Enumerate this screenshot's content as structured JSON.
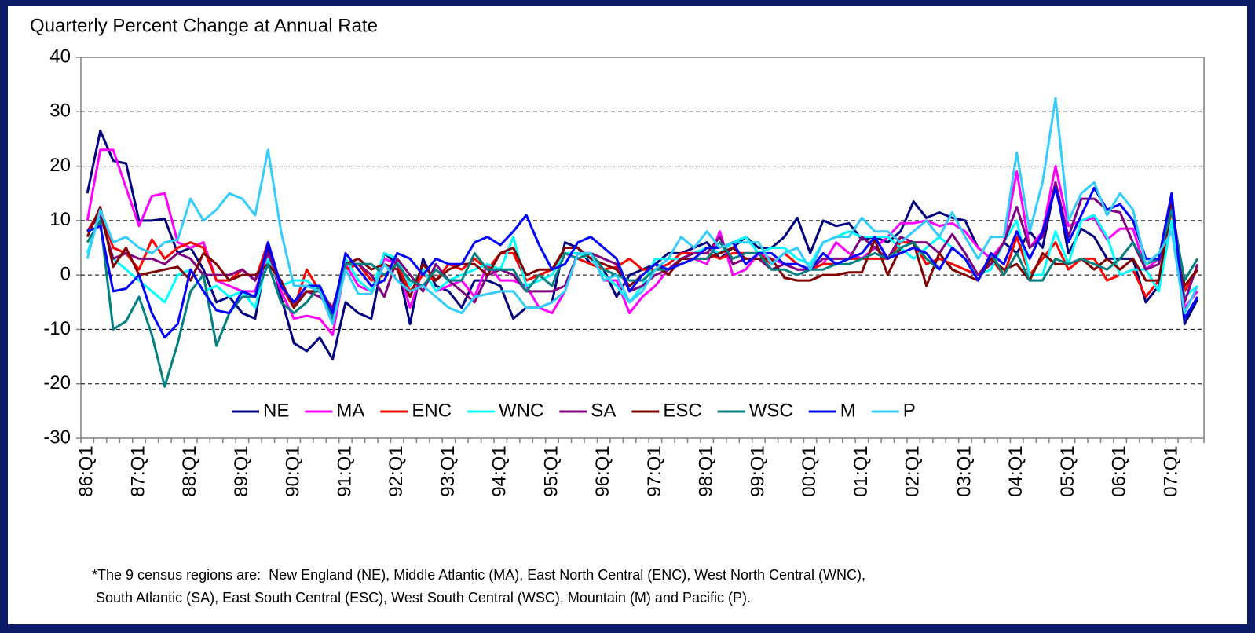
{
  "chart_data": {
    "type": "line",
    "title": "Quarterly Percent Change at Annual Rate",
    "footnote": [
      "*The 9 census regions are:  New England (NE), Middle Atlantic (MA), East North Central (ENC), West North Central (WNC),",
      " South Atlantic (SA), East South Central (ESC), West South Central (WSC), Mountain (M) and Pacific (P)."
    ],
    "categories": [
      "86:Q1",
      null,
      null,
      null,
      "87:Q1",
      null,
      null,
      null,
      "88:Q1",
      null,
      null,
      null,
      "89:Q1",
      null,
      null,
      null,
      "90:Q1",
      null,
      null,
      null,
      "91:Q1",
      null,
      null,
      null,
      "92:Q1",
      null,
      null,
      null,
      "93:Q1",
      null,
      null,
      null,
      "94:Q1",
      null,
      null,
      null,
      "95:Q1",
      null,
      null,
      null,
      "96:Q1",
      null,
      null,
      null,
      "97:Q1",
      null,
      null,
      null,
      "98:Q1",
      null,
      null,
      null,
      "99:Q1",
      null,
      null,
      null,
      "00:Q1",
      null,
      null,
      null,
      "01:Q1",
      null,
      null,
      null,
      "02:Q1",
      null,
      null,
      null,
      "03:Q1",
      null,
      null,
      null,
      "04:Q1",
      null,
      null,
      null,
      "05:Q1",
      null,
      null,
      null,
      "06:Q1",
      null,
      null,
      null,
      "07:Q1",
      null,
      null
    ],
    "ylim": [
      -30,
      40
    ],
    "yticks": [
      -30,
      -20,
      -10,
      0,
      10,
      20,
      30,
      40
    ],
    "grid": true,
    "legend": "bottom",
    "series": [
      {
        "name": "NE",
        "color": "#000080",
        "values": [
          15,
          26.5,
          21,
          20.5,
          10,
          10,
          10.3,
          4,
          5,
          1,
          -5,
          -4,
          -7,
          -8,
          5,
          -4,
          -12.5,
          -14,
          -11.5,
          -15.5,
          -5,
          -7,
          -8,
          4,
          2,
          -9,
          3,
          -2,
          -3,
          -6,
          -1,
          -1,
          -2,
          -8,
          -6,
          -6,
          -5,
          6,
          5,
          2,
          1,
          -4,
          0,
          1,
          2,
          4,
          4,
          5,
          6,
          3,
          5,
          7,
          5,
          5,
          7,
          10.5,
          4,
          10,
          9,
          9.5,
          6.5,
          7,
          6,
          8,
          13.5,
          10.5,
          11.5,
          10.5,
          10,
          5,
          3,
          6,
          4,
          8,
          5,
          17,
          4,
          8.5,
          7,
          3,
          3,
          3,
          -5,
          -2,
          15,
          -9,
          -4.5
        ]
      },
      {
        "name": "MA",
        "color": "#ff00ff",
        "values": [
          10,
          23,
          23,
          16,
          9,
          14.5,
          15,
          6,
          5,
          6,
          -1,
          -2,
          -3,
          -3,
          4,
          -3,
          -8,
          -7.5,
          -8,
          -11,
          2,
          -2,
          -3,
          3,
          2,
          -6,
          1,
          -3,
          -2,
          -1,
          -4,
          2,
          -1,
          -1,
          -2,
          -6,
          -7,
          -3,
          4,
          4,
          -1,
          -1,
          -7,
          -4,
          -2,
          1,
          3,
          3,
          2,
          8,
          0,
          1,
          4,
          3,
          2,
          1,
          1,
          2,
          6,
          4,
          3,
          5,
          7,
          9.5,
          9.5,
          10,
          9,
          9.5,
          8,
          5,
          3,
          6,
          19,
          5,
          8,
          20,
          9,
          10,
          10.5,
          6.5,
          8.5,
          8.5,
          1,
          3,
          13,
          -6,
          -3
        ]
      },
      {
        "name": "ENC",
        "color": "#ff0000",
        "values": [
          8,
          12,
          5,
          4,
          1,
          6.5,
          3,
          5,
          6,
          5,
          -1,
          -1,
          1,
          -1,
          6,
          -2,
          -6,
          1,
          -3,
          -6,
          1,
          2,
          -1,
          0,
          2,
          -3,
          0,
          -1,
          2,
          1,
          3,
          1,
          4,
          4,
          -1,
          0,
          1,
          4,
          3,
          2,
          1,
          1.5,
          3,
          1,
          1,
          2,
          4,
          4,
          4,
          3,
          4,
          4,
          4,
          2,
          4,
          2,
          1,
          2,
          2,
          3,
          3,
          3,
          3,
          6,
          6,
          2,
          3,
          2,
          1,
          0,
          3,
          0,
          7,
          0,
          3,
          6,
          1,
          3,
          3,
          -1,
          0,
          1,
          -4,
          -1,
          12,
          -3,
          1
        ]
      },
      {
        "name": "WNC",
        "color": "#00ffff",
        "values": [
          4,
          11,
          3,
          1,
          -1,
          -3,
          -5,
          0,
          1,
          -3,
          -2,
          -4,
          -3,
          -6,
          3,
          -2,
          -1,
          -1,
          -3,
          -9,
          3,
          -1,
          -3,
          4,
          3,
          -2,
          1,
          -3,
          -1,
          0,
          1,
          2,
          1,
          7,
          -2,
          -1,
          0,
          4,
          4,
          3,
          0,
          -2,
          -5,
          -2,
          3,
          3,
          3,
          4,
          5,
          4,
          6,
          7,
          4,
          5,
          5,
          3,
          2,
          6,
          7,
          8,
          7,
          7,
          7,
          5,
          3,
          5,
          7,
          5,
          3,
          0,
          1,
          6,
          10,
          0,
          0,
          8,
          2,
          10,
          11,
          7,
          0,
          1,
          1,
          -3,
          10,
          -4,
          -2
        ]
      },
      {
        "name": "SA",
        "color": "#800080",
        "values": [
          8,
          11,
          3,
          4,
          3,
          3,
          2,
          4,
          3,
          0,
          0,
          0,
          1,
          -1,
          4,
          -2,
          -5,
          -3,
          -4,
          -6,
          2,
          2,
          0,
          -4,
          3,
          0,
          -3,
          2,
          -1,
          -3,
          -5,
          0,
          1,
          0,
          -3,
          -3,
          -3,
          -2,
          4,
          4,
          3,
          2,
          -3,
          -2,
          0,
          1,
          3,
          4,
          4,
          7,
          2,
          3,
          3,
          1,
          2,
          1,
          1,
          3,
          3,
          3,
          7,
          5,
          3,
          7,
          6,
          6,
          4,
          7.5,
          4,
          0,
          2,
          6,
          12.5,
          5,
          7,
          17,
          7,
          14,
          14,
          12,
          11.5,
          6,
          1,
          2,
          13,
          -5,
          2
        ]
      },
      {
        "name": "ESC",
        "color": "#800000",
        "values": [
          7,
          12.5,
          1.5,
          5,
          0,
          0.5,
          1,
          1.5,
          -1,
          4,
          2,
          -1,
          0,
          0,
          2,
          -1,
          -6,
          -3,
          -3,
          -7,
          2,
          3,
          1,
          2,
          1,
          -4,
          2,
          -1,
          1,
          2,
          2,
          0,
          4,
          5,
          0,
          1,
          1,
          5,
          5,
          3,
          2,
          1,
          -2,
          0,
          2,
          0,
          3,
          3,
          3,
          4,
          5,
          3,
          3,
          3,
          -0.5,
          -1,
          -1,
          0,
          0,
          0.5,
          0.5,
          6.5,
          0,
          5,
          6,
          -2,
          4,
          1,
          0,
          -1,
          3,
          1,
          2,
          -1,
          4,
          2,
          2,
          3,
          1,
          3,
          1,
          3,
          -1,
          -1,
          13,
          -2,
          1
        ]
      },
      {
        "name": "WSC",
        "color": "#008080",
        "values": [
          6,
          10,
          -10,
          -8.5,
          -4,
          -11,
          -20.5,
          -12.5,
          -3,
          0,
          -13,
          -7,
          -4,
          -4,
          2,
          -5,
          -7,
          -5,
          -2,
          -8,
          2,
          2,
          2,
          0,
          2,
          -1,
          -2,
          1,
          -1,
          -1,
          4,
          1,
          1,
          1,
          -3,
          0,
          -2,
          4,
          3,
          4,
          1,
          0,
          -1,
          -1,
          1,
          1,
          2,
          3,
          3,
          6,
          3,
          4,
          4,
          1,
          1,
          0,
          1,
          1,
          2,
          2,
          3,
          4,
          3,
          5,
          6,
          3,
          1,
          5,
          3,
          -1,
          4,
          0,
          4,
          -1,
          -1,
          3,
          2,
          3,
          2,
          1,
          3,
          6,
          2,
          3,
          12,
          -1,
          3
        ]
      },
      {
        "name": "M",
        "color": "#0000ff",
        "values": [
          8,
          9,
          -3,
          -2.5,
          0,
          -7,
          -11.5,
          -9,
          1,
          -3,
          -6.5,
          -7,
          -3,
          -4,
          6,
          -2,
          -5,
          -2,
          -2,
          -7,
          4,
          1,
          -2,
          -1,
          4,
          3,
          0,
          3,
          2,
          2,
          6,
          7,
          5.5,
          8,
          11,
          5.5,
          1,
          2,
          6,
          7,
          5,
          3,
          -3,
          0,
          2,
          1,
          2,
          3,
          5,
          5,
          6,
          2,
          4,
          4,
          2,
          2,
          1,
          4,
          2,
          3,
          4,
          7,
          3,
          4,
          5,
          4,
          1,
          5,
          3,
          -1,
          4,
          2,
          8,
          3,
          8,
          16,
          6,
          11,
          16,
          12,
          13,
          10,
          3,
          3,
          15,
          -8,
          -4
        ]
      },
      {
        "name": "P",
        "color": "#33ccff",
        "values": [
          3,
          12,
          6,
          7,
          5,
          4,
          6,
          6.5,
          14,
          10,
          12,
          15,
          14,
          11,
          23,
          8,
          -2,
          -2,
          -3,
          -9,
          1,
          -3.5,
          -3.5,
          2,
          -1,
          -3,
          -2,
          -4,
          -6,
          -7,
          -4,
          -3.5,
          -3,
          -3,
          -6,
          -6,
          -5,
          -3,
          4,
          4,
          -1,
          0,
          -5,
          -3,
          1,
          3,
          7,
          5,
          8,
          5,
          6,
          6,
          6,
          2,
          4,
          5,
          1,
          6,
          7,
          7,
          10.5,
          8,
          8,
          6,
          8,
          10,
          7,
          11.5,
          7,
          3,
          7,
          7,
          22.5,
          8,
          17,
          32.5,
          10,
          15,
          17,
          11,
          15,
          12,
          2,
          4,
          8,
          -7,
          -2
        ]
      }
    ]
  }
}
